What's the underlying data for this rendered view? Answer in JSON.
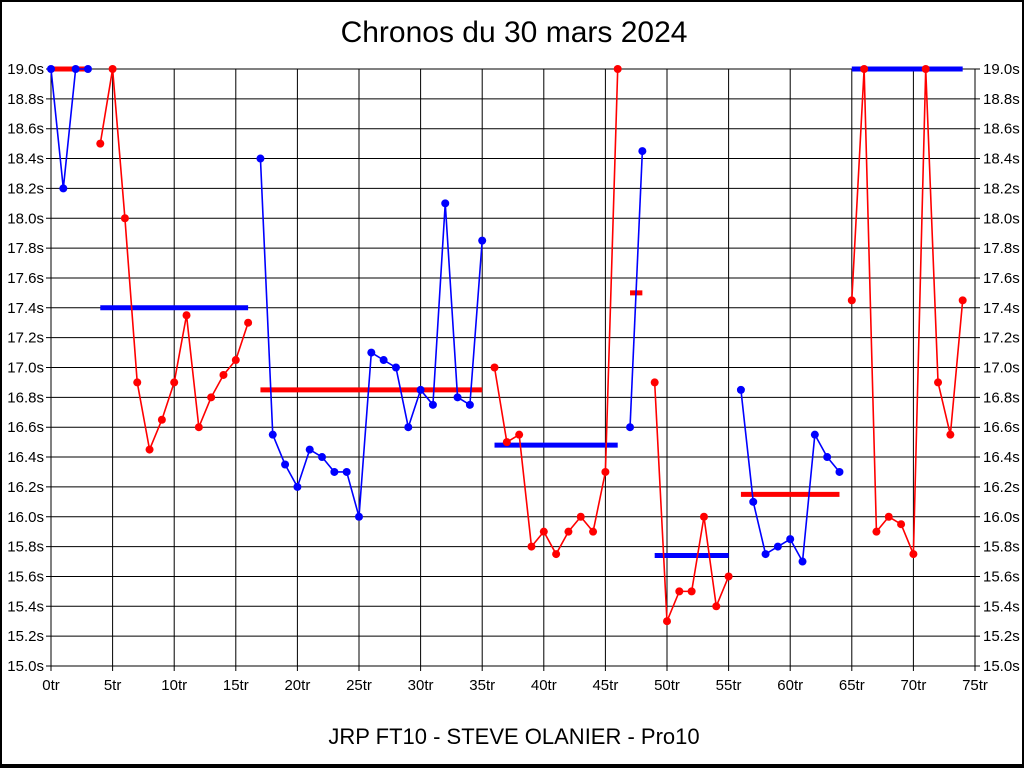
{
  "window": {
    "background": "#ffffff",
    "border_color": "#000000"
  },
  "header": {
    "title": "Chronos du 30 mars 2024"
  },
  "footer": {
    "subtitle": "JRP FT10 - STEVE OLANIER - Pro10"
  },
  "colors": {
    "driver_blue": "#0000ff",
    "driver_red": "#ff0000",
    "grid": "#000000",
    "text": "#000000"
  },
  "chart_data": {
    "type": "line",
    "title": "Chronos du 30 mars 2024",
    "subtitle": "JRP FT10 - STEVE OLANIER - Pro10",
    "legend": "none",
    "grid": true,
    "x_axis": {
      "unit": "tr",
      "min": 0,
      "max": 75,
      "tick_step": 5,
      "tick_labels": [
        "0tr",
        "5tr",
        "10tr",
        "15tr",
        "20tr",
        "25tr",
        "30tr",
        "35tr",
        "40tr",
        "45tr",
        "50tr",
        "55tr",
        "60tr",
        "65tr",
        "70tr",
        "75tr"
      ]
    },
    "y_axis": {
      "unit": "s",
      "min": 15.0,
      "max": 19.0,
      "tick_step": 0.2,
      "labels_on_both_sides": true,
      "tick_labels": [
        "19.0s",
        "18.8s",
        "18.6s",
        "18.4s",
        "18.2s",
        "18.0s",
        "17.8s",
        "17.6s",
        "17.4s",
        "17.2s",
        "17.0s",
        "16.8s",
        "16.6s",
        "16.4s",
        "16.2s",
        "16.0s",
        "15.8s",
        "15.6s",
        "15.4s",
        "15.2s",
        "15.0s"
      ]
    },
    "series": [
      {
        "name": "driver-red",
        "color": "#ff0000",
        "segments": [
          [
            [
              4,
              18.5
            ],
            [
              5,
              19.0
            ],
            [
              6,
              18.0
            ],
            [
              7,
              16.9
            ],
            [
              8,
              16.45
            ],
            [
              9,
              16.65
            ],
            [
              10,
              16.9
            ],
            [
              11,
              17.35
            ],
            [
              12,
              16.6
            ],
            [
              13,
              16.8
            ],
            [
              14,
              16.95
            ],
            [
              15,
              17.05
            ],
            [
              16,
              17.3
            ]
          ],
          [
            [
              36,
              17.0
            ],
            [
              37,
              16.5
            ],
            [
              38,
              16.55
            ],
            [
              39,
              15.8
            ],
            [
              40,
              15.9
            ],
            [
              41,
              15.75
            ],
            [
              42,
              15.9
            ],
            [
              43,
              16.0
            ],
            [
              44,
              15.9
            ],
            [
              45,
              16.3
            ],
            [
              46,
              19.0
            ]
          ],
          [
            [
              49,
              16.9
            ],
            [
              50,
              15.3
            ],
            [
              51,
              15.5
            ],
            [
              52,
              15.5
            ],
            [
              53,
              16.0
            ],
            [
              54,
              15.4
            ],
            [
              55,
              15.6
            ]
          ],
          [
            [
              65,
              17.45
            ],
            [
              66,
              19.0
            ],
            [
              67,
              15.9
            ],
            [
              68,
              16.0
            ],
            [
              69,
              15.95
            ],
            [
              70,
              15.75
            ],
            [
              71,
              19.0
            ],
            [
              72,
              16.9
            ],
            [
              73,
              16.55
            ],
            [
              74,
              17.45
            ]
          ]
        ]
      },
      {
        "name": "driver-blue",
        "color": "#0000ff",
        "segments": [
          [
            [
              0,
              19.0
            ],
            [
              1,
              18.2
            ],
            [
              2,
              19.0
            ],
            [
              3,
              19.0
            ]
          ],
          [
            [
              17,
              18.4
            ],
            [
              18,
              16.55
            ],
            [
              19,
              16.35
            ],
            [
              20,
              16.2
            ],
            [
              21,
              16.45
            ],
            [
              22,
              16.4
            ],
            [
              23,
              16.3
            ],
            [
              24,
              16.3
            ],
            [
              25,
              16.0
            ],
            [
              26,
              17.1
            ],
            [
              27,
              17.05
            ],
            [
              28,
              17.0
            ],
            [
              29,
              16.6
            ],
            [
              30,
              16.85
            ],
            [
              31,
              16.75
            ],
            [
              32,
              18.1
            ],
            [
              33,
              16.8
            ],
            [
              34,
              16.75
            ],
            [
              35,
              17.85
            ]
          ],
          [
            [
              47,
              16.6
            ],
            [
              48,
              18.45
            ]
          ],
          [
            [
              56,
              16.85
            ],
            [
              57,
              16.1
            ],
            [
              58,
              15.75
            ],
            [
              59,
              15.8
            ],
            [
              60,
              15.85
            ],
            [
              61,
              15.7
            ],
            [
              62,
              16.55
            ],
            [
              63,
              16.4
            ],
            [
              64,
              16.3
            ]
          ]
        ]
      }
    ],
    "stint_average_bars": [
      {
        "color": "#ff0000",
        "from_lap": 0,
        "to_lap": 3,
        "value": 19.0
      },
      {
        "color": "#0000ff",
        "from_lap": 4,
        "to_lap": 16,
        "value": 17.4
      },
      {
        "color": "#ff0000",
        "from_lap": 17,
        "to_lap": 35,
        "value": 16.85
      },
      {
        "color": "#0000ff",
        "from_lap": 36,
        "to_lap": 46,
        "value": 16.48
      },
      {
        "color": "#ff0000",
        "from_lap": 47,
        "to_lap": 48,
        "value": 17.5
      },
      {
        "color": "#0000ff",
        "from_lap": 49,
        "to_lap": 55,
        "value": 15.74
      },
      {
        "color": "#ff0000",
        "from_lap": 56,
        "to_lap": 64,
        "value": 16.15
      },
      {
        "color": "#0000ff",
        "from_lap": 65,
        "to_lap": 74,
        "value": 19.0
      }
    ]
  }
}
